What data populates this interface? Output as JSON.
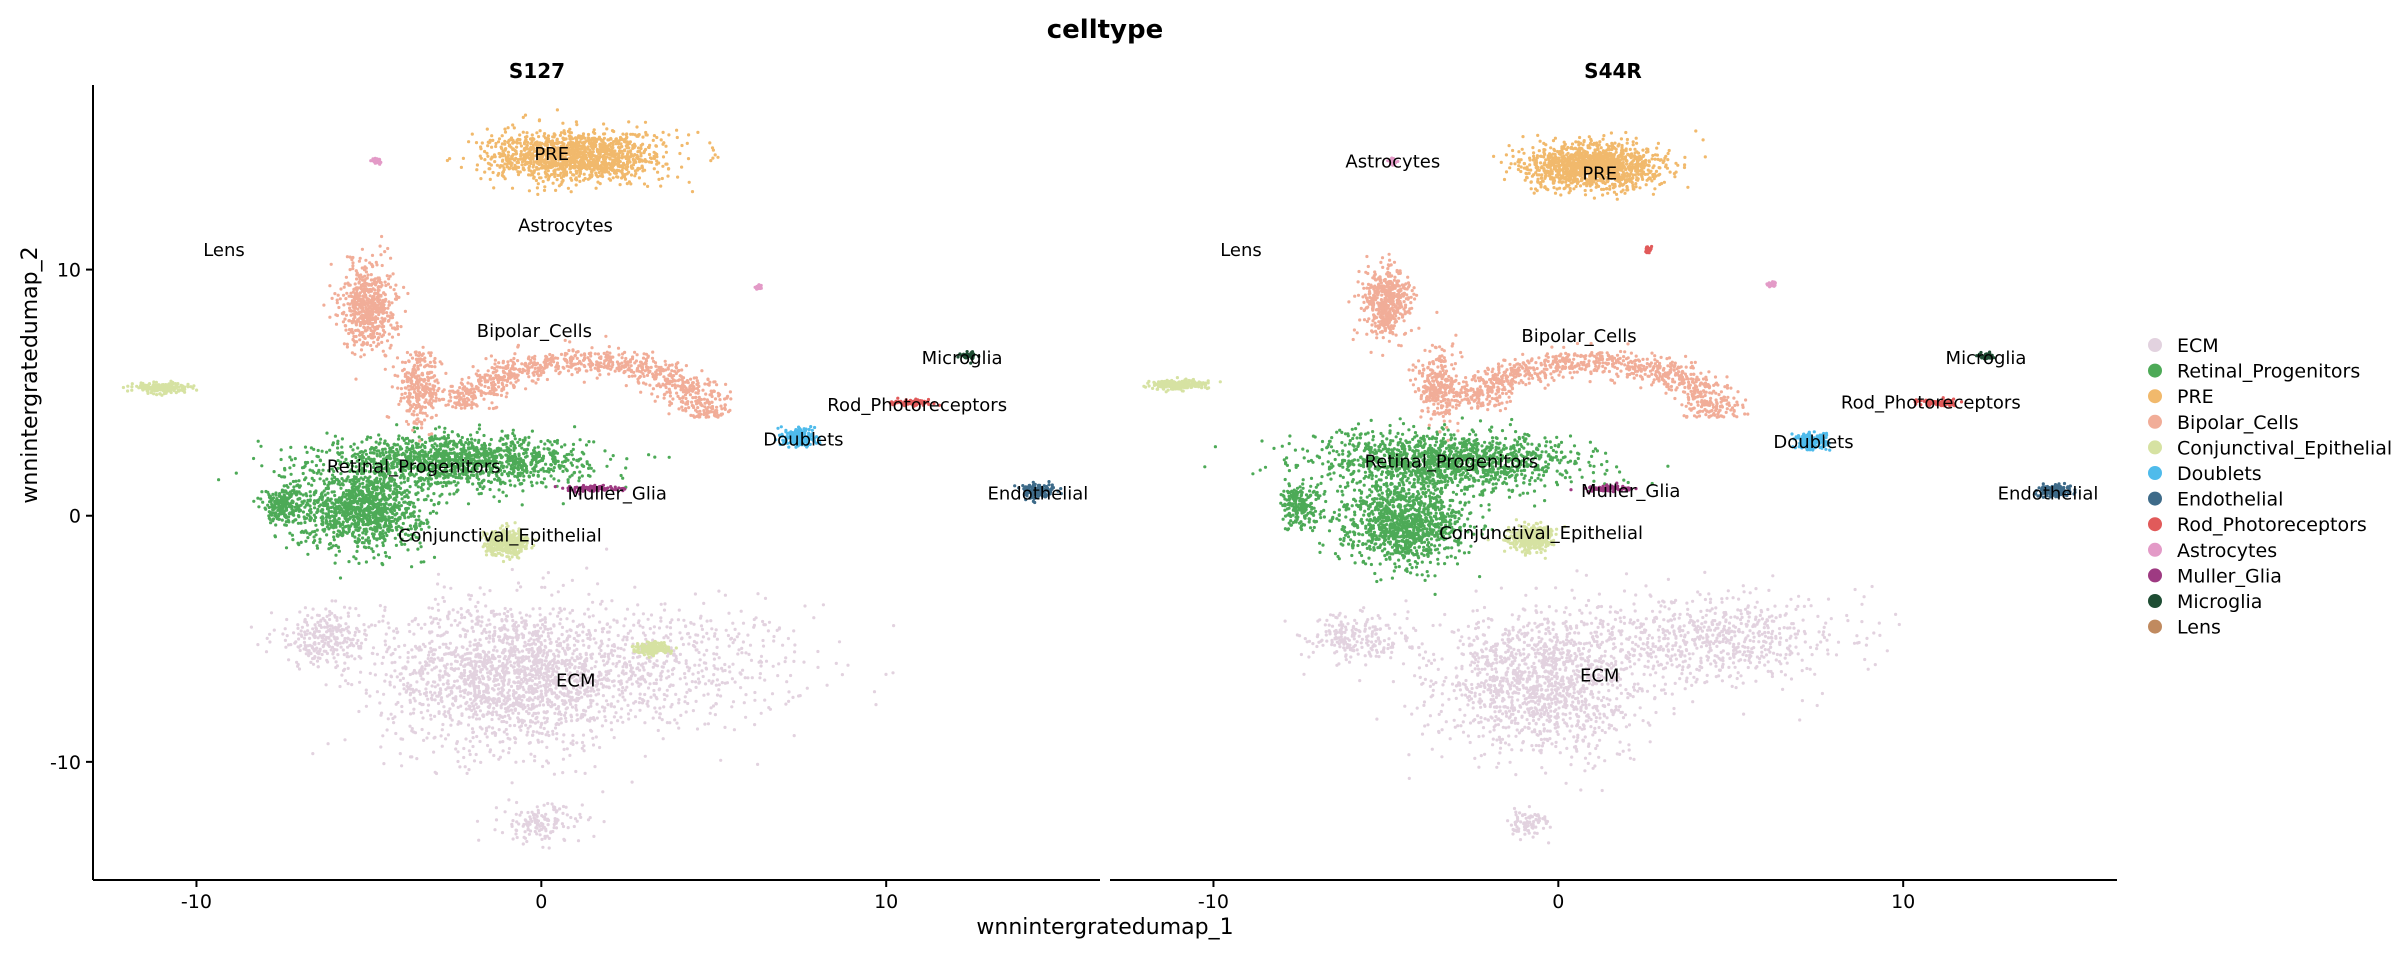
{
  "chart_data": {
    "type": "scatter",
    "title": "celltype",
    "xlabel": "wnnintergratedumap_1",
    "ylabel": "wnnintergratedumap_2",
    "xlim": [
      -13,
      16.2
    ],
    "ylim": [
      -14.8,
      17.5
    ],
    "xticks": [
      -10,
      0,
      10
    ],
    "yticks": [
      -10,
      0,
      10
    ],
    "grid": false,
    "legend_position": "right",
    "legend": [
      {
        "name": "ECM",
        "color": "#E2D2DF"
      },
      {
        "name": "Retinal_Progenitors",
        "color": "#4DAA57"
      },
      {
        "name": "PRE",
        "color": "#F1B96C"
      },
      {
        "name": "Bipolar_Cells",
        "color": "#F1AD98"
      },
      {
        "name": "Conjunctival_Epithelial",
        "color": "#D6E2A2"
      },
      {
        "name": "Doublets",
        "color": "#4FBBEB"
      },
      {
        "name": "Endothelial",
        "color": "#3E6B89"
      },
      {
        "name": "Rod_Photoreceptors",
        "color": "#E15A5A"
      },
      {
        "name": "Astrocytes",
        "color": "#E39AC7"
      },
      {
        "name": "Muller_Glia",
        "color": "#9E3A82"
      },
      {
        "name": "Microglia",
        "color": "#1E4D33"
      },
      {
        "name": "Lens",
        "color": "#C08A5F"
      }
    ],
    "panels": [
      {
        "name": "S127",
        "clusters": [
          {
            "celltype": "ECM",
            "label": "ECM",
            "label_x": 1.0,
            "label_y": -6.7,
            "blobs": [
              [
                3.0,
                -6.2,
                4.8,
                2.6,
                0.5
              ],
              [
                -1.0,
                -6.5,
                3.5,
                3.0,
                1.2
              ],
              [
                0.0,
                -12.5,
                1.2,
                0.8,
                0.1
              ],
              [
                -6.2,
                -5.0,
                1.6,
                1.2,
                0.2
              ]
            ]
          },
          {
            "celltype": "Retinal_Progenitors",
            "label": "Retinal_Progenitors",
            "label_x": -3.7,
            "label_y": 2.0,
            "blobs": [
              [
                -2.5,
                2.2,
                3.8,
                1.0,
                1.0
              ],
              [
                -5.2,
                0.3,
                1.8,
                1.6,
                0.8
              ],
              [
                -7.5,
                0.4,
                0.6,
                0.8,
                0.15
              ]
            ]
          },
          {
            "celltype": "PRE",
            "label": "PRE",
            "label_x": 0.3,
            "label_y": 14.7,
            "blobs": [
              [
                1.0,
                14.6,
                2.5,
                1.0,
                1.0
              ]
            ]
          },
          {
            "celltype": "Bipolar_Cells",
            "label": "Bipolar_Cells",
            "label_x": -0.2,
            "label_y": 7.5,
            "arc": true,
            "blobs": [
              [
                -5.0,
                8.5,
                0.8,
                1.8,
                0.4
              ],
              [
                -3.5,
                5.2,
                0.6,
                1.5,
                0.2
              ]
            ]
          },
          {
            "celltype": "Conjunctival_Epithelial",
            "label": "Conjunctival_Epithelial",
            "label_x": -1.2,
            "label_y": -0.8,
            "blobs": [
              [
                -1.0,
                -1.1,
                0.6,
                0.5,
                0.3
              ],
              [
                3.2,
                -5.4,
                0.5,
                0.25,
                0.15
              ],
              [
                -11.0,
                5.2,
                0.8,
                0.2,
                0.15
              ]
            ]
          },
          {
            "celltype": "Doublets",
            "label": "Doublets",
            "label_x": 7.6,
            "label_y": 3.1,
            "blobs": [
              [
                7.5,
                3.2,
                0.45,
                0.35,
                0.15
              ]
            ]
          },
          {
            "celltype": "Endothelial",
            "label": "Endothelial",
            "label_x": 14.4,
            "label_y": 0.9,
            "blobs": [
              [
                14.4,
                1.0,
                0.45,
                0.3,
                0.12
              ]
            ]
          },
          {
            "celltype": "Rod_Photoreceptors",
            "label": "Rod_Photoreceptors",
            "label_x": 10.9,
            "label_y": 4.5,
            "blobs": [
              [
                10.8,
                4.6,
                0.6,
                0.12,
                0.06
              ]
            ]
          },
          {
            "celltype": "Astrocytes",
            "label": "Astrocytes",
            "label_x": 0.7,
            "label_y": 11.8,
            "blobs": [
              [
                -4.8,
                14.4,
                0.12,
                0.12,
                0.02
              ],
              [
                6.3,
                9.3,
                0.1,
                0.12,
                0.02
              ]
            ]
          },
          {
            "celltype": "Muller_Glia",
            "label": "Muller_Glia",
            "label_x": 2.2,
            "label_y": 0.9,
            "blobs": [
              [
                1.5,
                1.1,
                0.7,
                0.12,
                0.06
              ]
            ]
          },
          {
            "celltype": "Microglia",
            "label": "Microglia",
            "label_x": 12.2,
            "label_y": 6.4,
            "blobs": [
              [
                12.4,
                6.5,
                0.25,
                0.15,
                0.03
              ]
            ]
          },
          {
            "celltype": "Lens",
            "label": "Lens",
            "label_x": -9.2,
            "label_y": 10.8,
            "blobs": []
          }
        ]
      },
      {
        "name": "S44R",
        "clusters": [
          {
            "celltype": "ECM",
            "label": "ECM",
            "label_x": 1.2,
            "label_y": -6.5,
            "blobs": [
              [
                4.5,
                -5.0,
                3.8,
                1.8,
                0.5
              ],
              [
                -0.5,
                -6.8,
                3.0,
                2.8,
                1.0
              ],
              [
                -0.9,
                -12.5,
                0.6,
                0.6,
                0.06
              ],
              [
                -6.0,
                -5.0,
                1.5,
                1.0,
                0.15
              ]
            ]
          },
          {
            "celltype": "Retinal_Progenitors",
            "label": "Retinal_Progenitors",
            "label_x": -3.1,
            "label_y": 2.2,
            "blobs": [
              [
                -3.2,
                2.2,
                3.8,
                1.2,
                1.0
              ],
              [
                -4.5,
                -0.3,
                1.8,
                1.6,
                0.8
              ],
              [
                -7.5,
                0.4,
                0.6,
                0.9,
                0.15
              ]
            ]
          },
          {
            "celltype": "PRE",
            "label": "PRE",
            "label_x": 1.2,
            "label_y": 13.9,
            "blobs": [
              [
                1.0,
                14.2,
                1.9,
                0.9,
                1.0
              ]
            ]
          },
          {
            "celltype": "Bipolar_Cells",
            "label": "Bipolar_Cells",
            "label_x": 0.6,
            "label_y": 7.3,
            "arc": true,
            "blobs": [
              [
                -5.0,
                8.7,
                0.7,
                1.4,
                0.35
              ],
              [
                -3.5,
                5.2,
                0.6,
                1.5,
                0.2
              ]
            ]
          },
          {
            "celltype": "Conjunctival_Epithelial",
            "label": "Conjunctival_Epithelial",
            "label_x": -0.5,
            "label_y": -0.7,
            "blobs": [
              [
                -0.8,
                -0.9,
                0.6,
                0.5,
                0.3
              ],
              [
                -11.0,
                5.3,
                0.8,
                0.2,
                0.15
              ]
            ]
          },
          {
            "celltype": "Doublets",
            "label": "Doublets",
            "label_x": 7.4,
            "label_y": 3.0,
            "blobs": [
              [
                7.3,
                3.0,
                0.45,
                0.35,
                0.15
              ]
            ]
          },
          {
            "celltype": "Endothelial",
            "label": "Endothelial",
            "label_x": 14.2,
            "label_y": 0.9,
            "blobs": [
              [
                14.4,
                1.0,
                0.45,
                0.25,
                0.12
              ]
            ]
          },
          {
            "celltype": "Rod_Photoreceptors",
            "label": "Rod_Photoreceptors",
            "label_x": 10.8,
            "label_y": 4.6,
            "blobs": [
              [
                11.0,
                4.6,
                0.6,
                0.12,
                0.06
              ],
              [
                2.6,
                10.8,
                0.08,
                0.15,
                0.02
              ]
            ]
          },
          {
            "celltype": "Astrocytes",
            "label": "Astrocytes",
            "label_x": -4.8,
            "label_y": 14.4,
            "blobs": [
              [
                -4.8,
                14.4,
                0.12,
                0.12,
                0.02
              ],
              [
                6.2,
                9.4,
                0.12,
                0.1,
                0.02
              ]
            ]
          },
          {
            "celltype": "Muller_Glia",
            "label": "Muller_Glia",
            "label_x": 2.1,
            "label_y": 1.0,
            "blobs": [
              [
                1.5,
                1.1,
                0.7,
                0.12,
                0.06
              ]
            ]
          },
          {
            "celltype": "Microglia",
            "label": "Microglia",
            "label_x": 12.4,
            "label_y": 6.4,
            "blobs": [
              [
                12.4,
                6.5,
                0.25,
                0.15,
                0.03
              ]
            ]
          },
          {
            "celltype": "Lens",
            "label": "Lens",
            "label_x": -9.2,
            "label_y": 10.8,
            "blobs": []
          }
        ]
      }
    ]
  }
}
